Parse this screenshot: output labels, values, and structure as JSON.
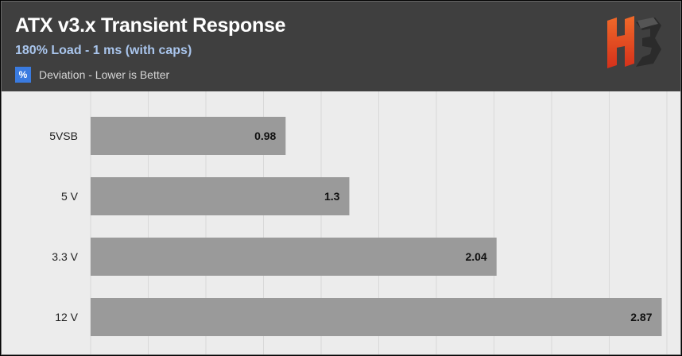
{
  "header": {
    "title": "ATX v3.x Transient Response",
    "subtitle": "180% Load - 1 ms (with caps)",
    "legend_symbol": "%",
    "legend_label": "Deviation - Lower is Better",
    "background_color": "#3f3f3f",
    "title_color": "#ffffff",
    "subtitle_color": "#a9c5ec",
    "legend_color": "#3a7be0"
  },
  "logo": {
    "icon": "hb-logo-icon",
    "colors": [
      "#e8401c",
      "#2b2b2b"
    ]
  },
  "chart_data": {
    "type": "bar",
    "orientation": "horizontal",
    "categories": [
      "5VSB",
      "5 V",
      "3.3 V",
      "12 V"
    ],
    "values": [
      0.98,
      1.3,
      2.04,
      2.87
    ],
    "value_labels": [
      "0.98",
      "1.3",
      "2.04",
      "2.87"
    ],
    "xlim": [
      0,
      2.9
    ],
    "grid": true,
    "bar_color": "#9a9a9a",
    "background_color": "#ececec",
    "grid_color": "#d9d9d9"
  }
}
